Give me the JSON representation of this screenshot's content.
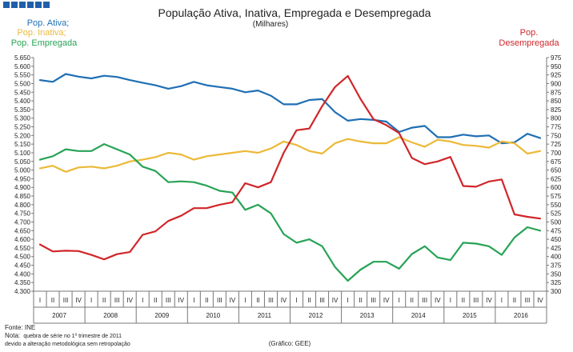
{
  "header_icon": "blue-squares-logo",
  "chart_data": {
    "type": "line",
    "title": "População Ativa, Inativa, Empregada  e Desempregada",
    "subtitle": "(Milhares)",
    "left_axis": {
      "min": 4300,
      "max": 5650,
      "step": 50
    },
    "right_axis": {
      "min": 300,
      "max": 975,
      "step": 25
    },
    "quarters": [
      "I",
      "II",
      "III",
      "IV"
    ],
    "years": [
      "2007",
      "2008",
      "2009",
      "2010",
      "2011",
      "2012",
      "2013",
      "2014",
      "2015",
      "2016"
    ],
    "x_count": 40,
    "series": [
      {
        "name": "Pop. Ativa;",
        "axis": "left",
        "color": "#1f6fb4",
        "values": [
          5520,
          5510,
          5555,
          5540,
          5530,
          5545,
          5538,
          5520,
          5505,
          5490,
          5470,
          5485,
          5510,
          5490,
          5480,
          5470,
          5450,
          5460,
          5430,
          5380,
          5380,
          5405,
          5410,
          5335,
          5285,
          5295,
          5290,
          5280,
          5220,
          5245,
          5255,
          5190,
          5190,
          5205,
          5195,
          5200,
          5155,
          5160,
          5210,
          5185
        ]
      },
      {
        "name": "Pop. Inativa;",
        "axis": "left",
        "color": "#ecb938",
        "values": [
          5010,
          5025,
          4990,
          5015,
          5020,
          5010,
          5025,
          5050,
          5060,
          5075,
          5100,
          5090,
          5060,
          5080,
          5090,
          5100,
          5110,
          5100,
          5125,
          5165,
          5145,
          5110,
          5095,
          5155,
          5180,
          5165,
          5155,
          5155,
          5190,
          5160,
          5135,
          5175,
          5165,
          5145,
          5140,
          5130,
          5165,
          5155,
          5095,
          5110
        ]
      },
      {
        "name": "Pop. Empregada",
        "axis": "left",
        "color": "#27a356",
        "values": [
          5060,
          5080,
          5120,
          5110,
          5110,
          5150,
          5120,
          5090,
          5020,
          4995,
          4930,
          4935,
          4930,
          4910,
          4880,
          4870,
          4770,
          4800,
          4750,
          4630,
          4580,
          4600,
          4560,
          4440,
          4360,
          4425,
          4470,
          4470,
          4430,
          4515,
          4560,
          4495,
          4480,
          4580,
          4575,
          4560,
          4510,
          4610,
          4670,
          4650
        ]
      },
      {
        "name": "Pop.\nDesempregada",
        "axis": "right",
        "color": "#d0262a",
        "values": [
          435,
          415,
          417,
          416,
          405,
          392,
          407,
          413,
          463,
          473,
          503,
          518,
          540,
          540,
          550,
          557,
          612,
          600,
          615,
          700,
          765,
          770,
          835,
          890,
          922,
          855,
          797,
          780,
          757,
          685,
          667,
          675,
          688,
          604,
          602,
          617,
          623,
          522,
          515,
          510
        ]
      }
    ],
    "notes": {
      "source": "Fonte: INE",
      "note_prefix": "Nota:",
      "note_line1": "quebra de série no 1º trimestre de 2011",
      "note_line2": "devido a alteração metodológica sem retropolação",
      "credit": "(Gráfico: GEE)"
    }
  }
}
